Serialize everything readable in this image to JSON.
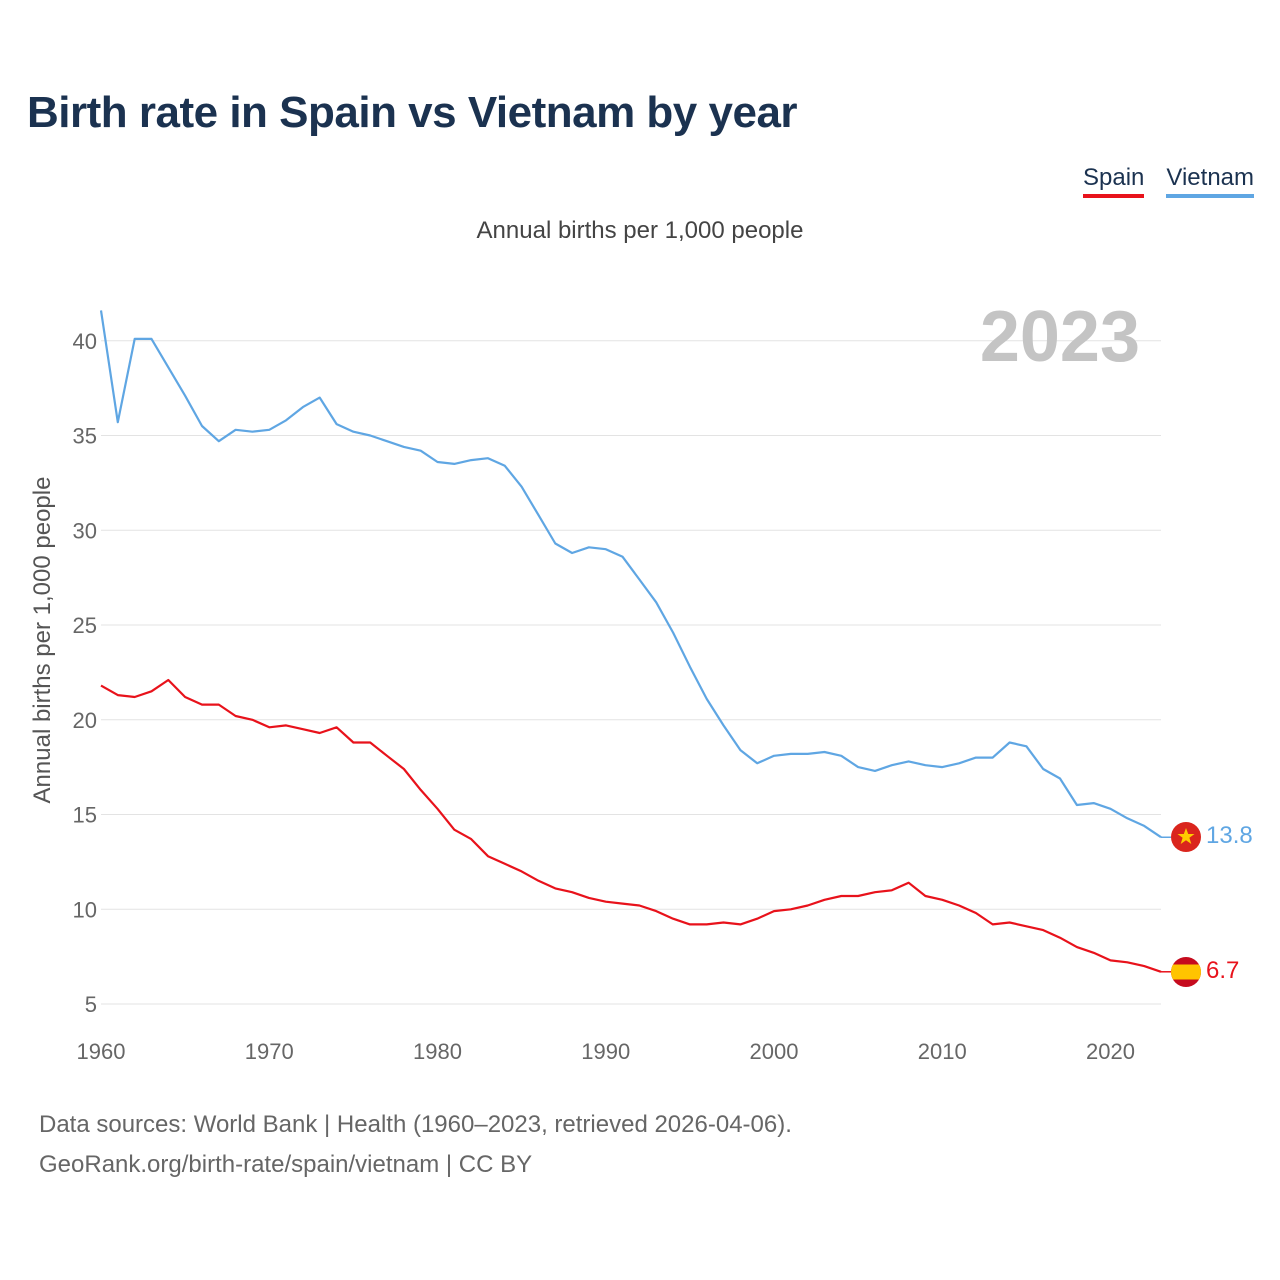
{
  "title": "Birth rate in Spain vs Vietnam by year",
  "legend": [
    {
      "name": "Spain",
      "color": "#e8121b"
    },
    {
      "name": "Vietnam",
      "color": "#5fa6e3"
    }
  ],
  "subtitle": "Annual births per 1,000 people",
  "chart_data": {
    "type": "line",
    "title": "Birth rate in Spain vs Vietnam by year",
    "ylabel": "Annual births per 1,000 people",
    "xlabel": "",
    "year_watermark": "2023",
    "xlim": [
      1960,
      2023
    ],
    "ylim": [
      5,
      42.5
    ],
    "x_ticks": [
      "1960",
      "1970",
      "1980",
      "1990",
      "2000",
      "2010",
      "2020"
    ],
    "y_ticks": [
      "5",
      "10",
      "15",
      "20",
      "25",
      "30",
      "35",
      "40"
    ],
    "grid": true,
    "series": [
      {
        "name": "Vietnam",
        "color": "#5fa6e3",
        "end_label": "13.8",
        "values": [
          41.6,
          35.7,
          40.1,
          40.1,
          38.6,
          37.1,
          35.5,
          34.7,
          35.3,
          35.2,
          35.3,
          35.8,
          36.5,
          37.0,
          35.6,
          35.2,
          35.0,
          34.7,
          34.4,
          34.2,
          33.6,
          33.5,
          33.7,
          33.8,
          33.4,
          32.3,
          30.8,
          29.3,
          28.8,
          29.1,
          29.0,
          28.6,
          27.4,
          26.2,
          24.6,
          22.8,
          21.1,
          19.7,
          18.4,
          17.7,
          18.1,
          18.2,
          18.2,
          18.3,
          18.1,
          17.5,
          17.3,
          17.6,
          17.8,
          17.6,
          17.5,
          17.7,
          18.0,
          18.0,
          18.8,
          18.6,
          17.4,
          16.9,
          15.5,
          15.6,
          15.3,
          14.8,
          14.4,
          13.8
        ]
      },
      {
        "name": "Spain",
        "color": "#e8121b",
        "end_label": "6.7",
        "values": [
          21.8,
          21.3,
          21.2,
          21.5,
          22.1,
          21.2,
          20.8,
          20.8,
          20.2,
          20.0,
          19.6,
          19.7,
          19.5,
          19.3,
          19.6,
          18.8,
          18.8,
          18.1,
          17.4,
          16.3,
          15.3,
          14.2,
          13.7,
          12.8,
          12.4,
          12.0,
          11.5,
          11.1,
          10.9,
          10.6,
          10.4,
          10.3,
          10.2,
          9.9,
          9.5,
          9.2,
          9.2,
          9.3,
          9.2,
          9.5,
          9.9,
          10.0,
          10.2,
          10.5,
          10.7,
          10.7,
          10.9,
          11.0,
          11.4,
          10.7,
          10.5,
          10.2,
          9.8,
          9.2,
          9.3,
          9.1,
          8.9,
          8.5,
          8.0,
          7.7,
          7.3,
          7.2,
          7.0,
          6.7
        ]
      }
    ]
  },
  "source_line1": "Data sources: World Bank | Health (1960–2023, retrieved 2026-04-06).",
  "source_line2": "GeoRank.org/birth-rate/spain/vietnam | CC BY"
}
